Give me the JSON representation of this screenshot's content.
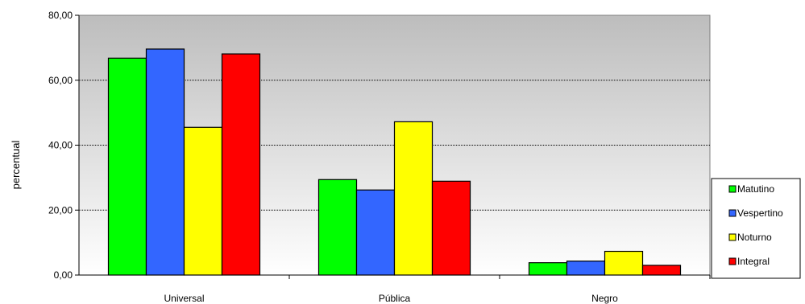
{
  "chart_data": {
    "type": "bar",
    "ylabel": "percentual",
    "xlabel": "",
    "ylim": [
      0,
      80
    ],
    "yticks": [
      0,
      20,
      40,
      60,
      80
    ],
    "ytick_labels": [
      "0,00",
      "20,00",
      "40,00",
      "60,00",
      "80,00"
    ],
    "categories": [
      "Universal",
      "Pública",
      "Negro"
    ],
    "series": [
      {
        "name": "Matutino",
        "color": "#00ff00",
        "values": [
          66.8,
          29.4,
          3.8
        ]
      },
      {
        "name": "Vespertino",
        "color": "#3366ff",
        "values": [
          69.6,
          26.2,
          4.3
        ]
      },
      {
        "name": "Noturno",
        "color": "#ffff00",
        "values": [
          45.5,
          47.2,
          7.3
        ]
      },
      {
        "name": "Integral",
        "color": "#ff0000",
        "values": [
          68.1,
          28.9,
          3.0
        ]
      }
    ],
    "grid": true,
    "legend_position": "right",
    "plot_background": "gradient-gray"
  }
}
